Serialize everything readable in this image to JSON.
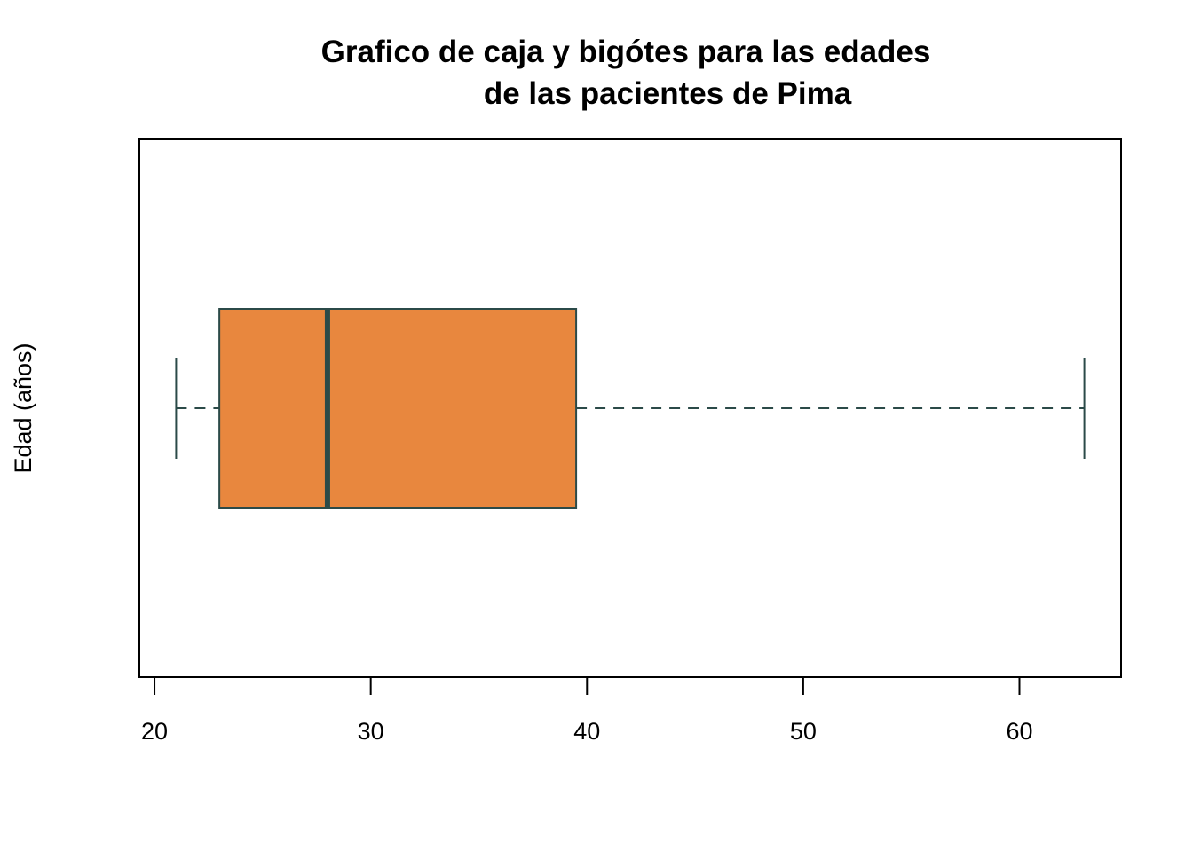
{
  "chart_data": {
    "type": "boxplot",
    "orientation": "horizontal",
    "title_lines": [
      "Grafico de caja y bigótes para las edades",
      "de las pacientes de Pima"
    ],
    "xlabel": "",
    "ylabel": "Edad (años)",
    "xlim": [
      19.3,
      64.7
    ],
    "x_ticks": [
      20,
      30,
      40,
      50,
      60
    ],
    "series": [
      {
        "whisker_low": 21,
        "q1": 23,
        "median": 28,
        "q3": 39.5,
        "whisker_high": 63
      }
    ],
    "grid": false,
    "legend": "none",
    "colors": {
      "box_fill": "#E8873E",
      "outline": "#2B4A48",
      "frame": "#000000"
    }
  }
}
